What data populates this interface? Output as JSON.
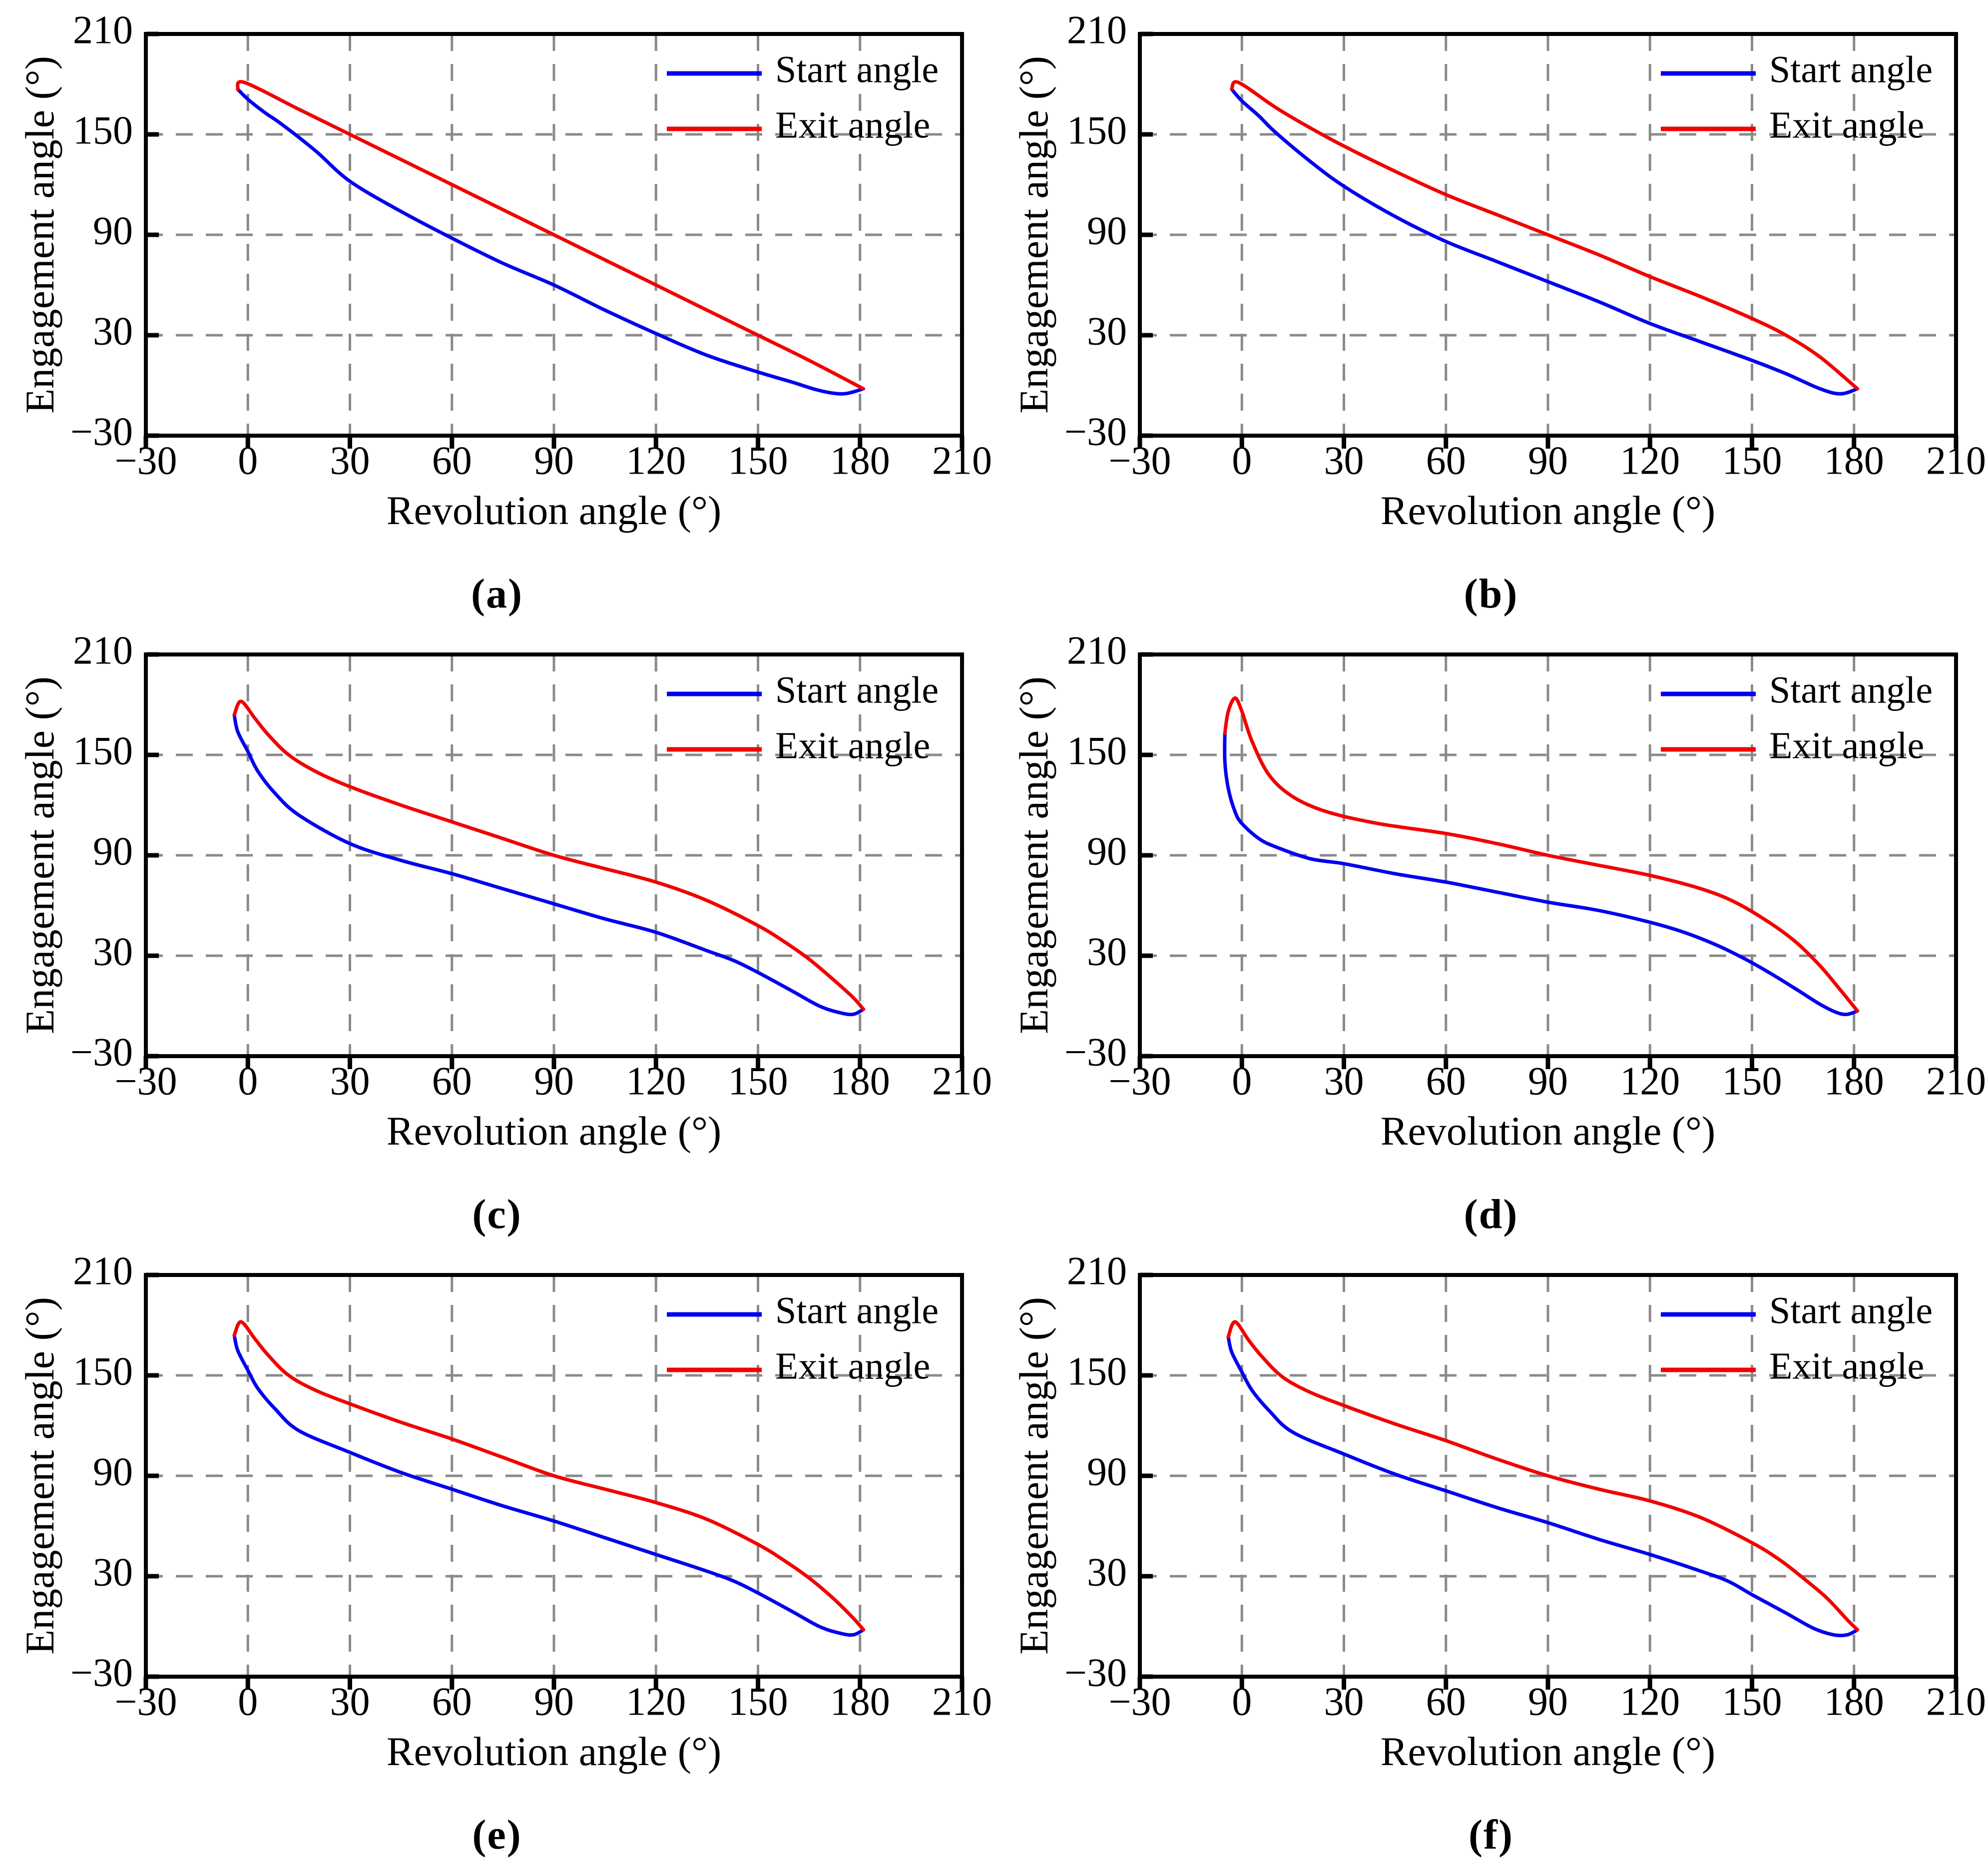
{
  "figure": {
    "background": "#ffffff"
  },
  "colors": {
    "start": "#0000ee",
    "exit": "#f20000",
    "grid": "#8a8a8a",
    "axis": "#000000",
    "text": "#000000"
  },
  "legend": {
    "entries": [
      {
        "label": "Start angle",
        "series": "start"
      },
      {
        "label": "Exit angle",
        "series": "exit"
      }
    ]
  },
  "axes": {
    "xlabel": "Revolution angle (°)",
    "ylabel": "Engagement angle (°)",
    "xlim": [
      -30,
      210
    ],
    "ylim": [
      -30,
      210
    ],
    "xticks": [
      {
        "label": "−30",
        "value": -30
      },
      {
        "label": "0",
        "value": 0
      },
      {
        "label": "30",
        "value": 30
      },
      {
        "label": "60",
        "value": 60
      },
      {
        "label": "90",
        "value": 90
      },
      {
        "label": "120",
        "value": 120
      },
      {
        "label": "150",
        "value": 150
      },
      {
        "label": "180",
        "value": 180
      },
      {
        "label": "210",
        "value": 210
      }
    ],
    "yticks": [
      {
        "label": "210",
        "value": 210
      },
      {
        "label": "150",
        "value": 150
      },
      {
        "label": "90",
        "value": 90
      },
      {
        "label": "30",
        "value": 30
      },
      {
        "label": "−30",
        "value": -30
      }
    ],
    "xgrid": [
      0,
      30,
      60,
      90,
      120,
      150,
      180
    ],
    "ygrid": [
      150,
      90,
      30
    ],
    "grid_style": "dashed",
    "legend_position": "top-right"
  },
  "chart_data": [
    {
      "id": "a",
      "caption": "(a)",
      "type": "line",
      "series": [
        {
          "name": "Start angle",
          "color_key": "start",
          "points": [
            [
              -3,
              177
            ],
            [
              0,
              171
            ],
            [
              5,
              163
            ],
            [
              10,
              156
            ],
            [
              20,
              140
            ],
            [
              30,
              122
            ],
            [
              45,
              104
            ],
            [
              60,
              88
            ],
            [
              75,
              73
            ],
            [
              90,
              60
            ],
            [
              105,
              45
            ],
            [
              120,
              31
            ],
            [
              135,
              18
            ],
            [
              150,
              8
            ],
            [
              160,
              2
            ],
            [
              168,
              -3
            ],
            [
              175,
              -5
            ],
            [
              181,
              -2
            ]
          ]
        },
        {
          "name": "Exit angle",
          "color_key": "exit",
          "points": [
            [
              -3,
              177
            ],
            [
              -1,
              181
            ],
            [
              15,
              165
            ],
            [
              30,
              150
            ],
            [
              60,
              120
            ],
            [
              90,
              90
            ],
            [
              120,
              60
            ],
            [
              150,
              30
            ],
            [
              165,
              15
            ],
            [
              181,
              -2
            ]
          ]
        }
      ]
    },
    {
      "id": "b",
      "caption": "(b)",
      "type": "line",
      "series": [
        {
          "name": "Start angle",
          "color_key": "start",
          "points": [
            [
              -3,
              177
            ],
            [
              0,
              170
            ],
            [
              5,
              161
            ],
            [
              10,
              151
            ],
            [
              20,
              134
            ],
            [
              30,
              119
            ],
            [
              45,
              101
            ],
            [
              60,
              86
            ],
            [
              75,
              74
            ],
            [
              90,
              62
            ],
            [
              105,
              50
            ],
            [
              120,
              37
            ],
            [
              135,
              26
            ],
            [
              150,
              15
            ],
            [
              160,
              7
            ],
            [
              170,
              -2
            ],
            [
              176,
              -5
            ],
            [
              181,
              -2
            ]
          ]
        },
        {
          "name": "Exit angle",
          "color_key": "exit",
          "points": [
            [
              -3,
              177
            ],
            [
              -1,
              181
            ],
            [
              10,
              166
            ],
            [
              20,
              154
            ],
            [
              30,
              143
            ],
            [
              45,
              128
            ],
            [
              60,
              114
            ],
            [
              75,
              102
            ],
            [
              90,
              90
            ],
            [
              105,
              78
            ],
            [
              120,
              65
            ],
            [
              135,
              53
            ],
            [
              150,
              40
            ],
            [
              160,
              30
            ],
            [
              170,
              17
            ],
            [
              181,
              -2
            ]
          ]
        }
      ]
    },
    {
      "id": "c",
      "caption": "(c)",
      "type": "line",
      "series": [
        {
          "name": "Start angle",
          "color_key": "start",
          "points": [
            [
              -4,
              174
            ],
            [
              -3,
              164
            ],
            [
              0,
              152
            ],
            [
              3,
              140
            ],
            [
              8,
              127
            ],
            [
              15,
              114
            ],
            [
              30,
              97
            ],
            [
              45,
              87
            ],
            [
              60,
              79
            ],
            [
              75,
              70
            ],
            [
              90,
              61
            ],
            [
              105,
              52
            ],
            [
              120,
              44
            ],
            [
              135,
              33
            ],
            [
              143,
              27
            ],
            [
              150,
              20
            ],
            [
              160,
              9
            ],
            [
              168,
              0
            ],
            [
              174,
              -4
            ],
            [
              178,
              -5
            ],
            [
              181,
              -2
            ]
          ]
        },
        {
          "name": "Exit angle",
          "color_key": "exit",
          "points": [
            [
              -4,
              174
            ],
            [
              -2,
              182
            ],
            [
              2,
              172
            ],
            [
              6,
              162
            ],
            [
              12,
              150
            ],
            [
              20,
              140
            ],
            [
              30,
              131
            ],
            [
              45,
              120
            ],
            [
              60,
              110
            ],
            [
              75,
              100
            ],
            [
              90,
              90
            ],
            [
              105,
              82
            ],
            [
              120,
              74
            ],
            [
              135,
              63
            ],
            [
              150,
              48
            ],
            [
              158,
              38
            ],
            [
              165,
              28
            ],
            [
              172,
              16
            ],
            [
              178,
              5
            ],
            [
              181,
              -2
            ]
          ]
        }
      ]
    },
    {
      "id": "d",
      "caption": "(d)",
      "type": "line",
      "series": [
        {
          "name": "Start angle",
          "color_key": "start",
          "points": [
            [
              -5,
              163
            ],
            [
              -5,
              146
            ],
            [
              -4,
              130
            ],
            [
              -2,
              116
            ],
            [
              0,
              109
            ],
            [
              5,
              100
            ],
            [
              10,
              95
            ],
            [
              20,
              88
            ],
            [
              30,
              85
            ],
            [
              45,
              79
            ],
            [
              60,
              74
            ],
            [
              75,
              68
            ],
            [
              90,
              62
            ],
            [
              105,
              57
            ],
            [
              120,
              50
            ],
            [
              130,
              44
            ],
            [
              140,
              36
            ],
            [
              148,
              28
            ],
            [
              155,
              20
            ],
            [
              163,
              10
            ],
            [
              170,
              1
            ],
            [
              175,
              -4
            ],
            [
              178,
              -5
            ],
            [
              181,
              -3
            ]
          ]
        },
        {
          "name": "Exit angle",
          "color_key": "exit",
          "points": [
            [
              -5,
              163
            ],
            [
              -4,
              176
            ],
            [
              -2,
              184
            ],
            [
              0,
              176
            ],
            [
              3,
              158
            ],
            [
              8,
              138
            ],
            [
              15,
              125
            ],
            [
              25,
              116
            ],
            [
              40,
              109
            ],
            [
              60,
              103
            ],
            [
              75,
              97
            ],
            [
              90,
              90
            ],
            [
              105,
              84
            ],
            [
              120,
              78
            ],
            [
              135,
              70
            ],
            [
              145,
              62
            ],
            [
              155,
              50
            ],
            [
              163,
              38
            ],
            [
              170,
              24
            ],
            [
              175,
              12
            ],
            [
              181,
              -3
            ]
          ]
        }
      ]
    },
    {
      "id": "e",
      "caption": "(e)",
      "type": "line",
      "series": [
        {
          "name": "Start angle",
          "color_key": "start",
          "points": [
            [
              -4,
              174
            ],
            [
              -3,
              165
            ],
            [
              0,
              153
            ],
            [
              3,
              142
            ],
            [
              8,
              130
            ],
            [
              15,
              117
            ],
            [
              30,
              104
            ],
            [
              45,
              92
            ],
            [
              60,
              82
            ],
            [
              75,
              72
            ],
            [
              90,
              63
            ],
            [
              105,
              53
            ],
            [
              120,
              43
            ],
            [
              135,
              33
            ],
            [
              143,
              27
            ],
            [
              150,
              20
            ],
            [
              160,
              9
            ],
            [
              168,
              0
            ],
            [
              174,
              -4
            ],
            [
              178,
              -5
            ],
            [
              181,
              -2
            ]
          ]
        },
        {
          "name": "Exit angle",
          "color_key": "exit",
          "points": [
            [
              -4,
              174
            ],
            [
              -2,
              182
            ],
            [
              2,
              172
            ],
            [
              6,
              162
            ],
            [
              12,
              150
            ],
            [
              20,
              141
            ],
            [
              30,
              133
            ],
            [
              45,
              122
            ],
            [
              60,
              112
            ],
            [
              75,
              101
            ],
            [
              90,
              90
            ],
            [
              105,
              82
            ],
            [
              120,
              74
            ],
            [
              135,
              64
            ],
            [
              150,
              49
            ],
            [
              158,
              39
            ],
            [
              165,
              29
            ],
            [
              172,
              17
            ],
            [
              178,
              5
            ],
            [
              181,
              -2
            ]
          ]
        }
      ]
    },
    {
      "id": "f",
      "caption": "(f)",
      "type": "line",
      "series": [
        {
          "name": "Start angle",
          "color_key": "start",
          "points": [
            [
              -4,
              173
            ],
            [
              -3,
              164
            ],
            [
              0,
              152
            ],
            [
              3,
              141
            ],
            [
              8,
              129
            ],
            [
              15,
              116
            ],
            [
              30,
              103
            ],
            [
              45,
              91
            ],
            [
              60,
              81
            ],
            [
              75,
              71
            ],
            [
              90,
              62
            ],
            [
              105,
              52
            ],
            [
              120,
              43
            ],
            [
              135,
              33
            ],
            [
              143,
              27
            ],
            [
              150,
              19
            ],
            [
              160,
              8
            ],
            [
              168,
              -1
            ],
            [
              174,
              -5
            ],
            [
              178,
              -5
            ],
            [
              181,
              -2
            ]
          ]
        },
        {
          "name": "Exit angle",
          "color_key": "exit",
          "points": [
            [
              -4,
              173
            ],
            [
              -2,
              182
            ],
            [
              2,
              171
            ],
            [
              6,
              161
            ],
            [
              12,
              149
            ],
            [
              20,
              140
            ],
            [
              30,
              132
            ],
            [
              45,
              121
            ],
            [
              60,
              111
            ],
            [
              75,
              100
            ],
            [
              90,
              90
            ],
            [
              105,
              82
            ],
            [
              120,
              75
            ],
            [
              135,
              65
            ],
            [
              150,
              50
            ],
            [
              158,
              40
            ],
            [
              165,
              29
            ],
            [
              172,
              17
            ],
            [
              178,
              4
            ],
            [
              181,
              -2
            ]
          ]
        }
      ]
    }
  ]
}
